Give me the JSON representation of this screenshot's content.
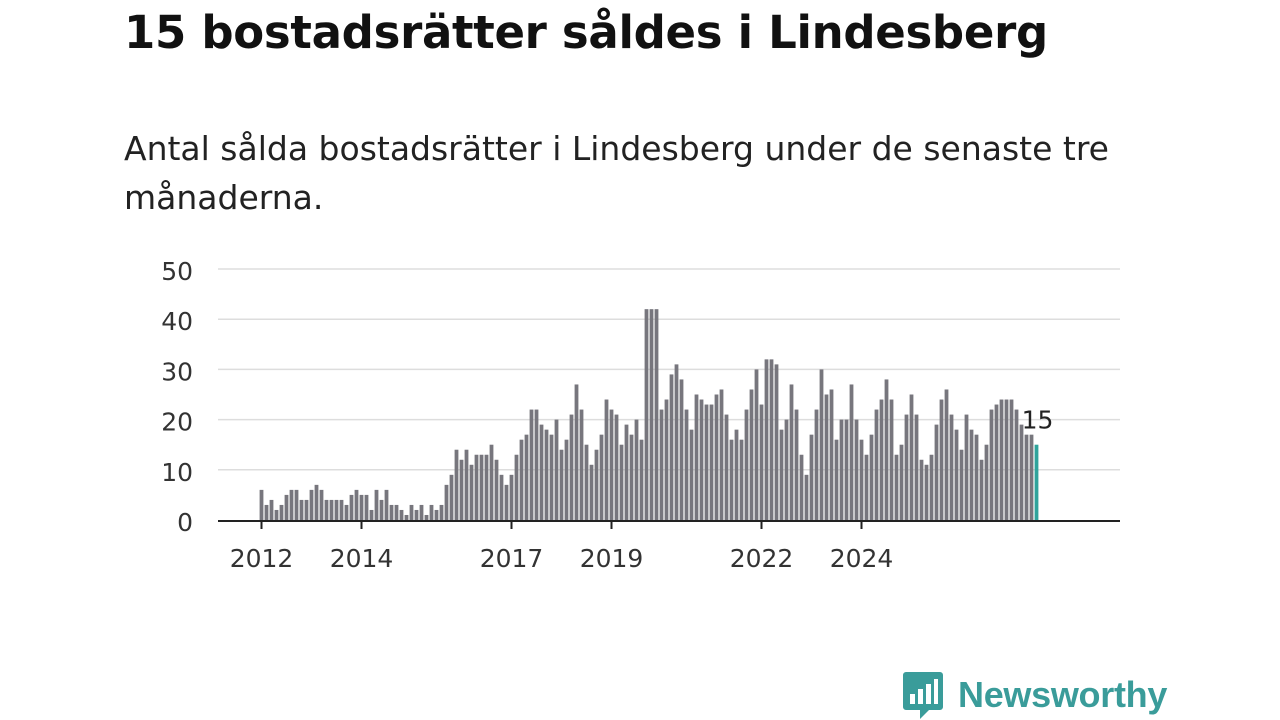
{
  "title": "15 bostadsrätter såldes i Lindesberg",
  "subtitle": "Antal sålda bostadsrätter i Lindesberg under de senaste tre månaderna.",
  "brand": {
    "name": "Newsworthy",
    "color": "#3a9c9a",
    "icon": "newsworthy-logo-icon"
  },
  "chart_data": {
    "type": "bar",
    "y_ticks": [
      0,
      10,
      20,
      30,
      40,
      50
    ],
    "ylim": [
      0,
      50
    ],
    "x_ticks": [
      {
        "label": "2012",
        "index": 0
      },
      {
        "label": "2014",
        "index": 20
      },
      {
        "label": "2017",
        "index": 50
      },
      {
        "label": "2019",
        "index": 70
      },
      {
        "label": "2022",
        "index": 100
      },
      {
        "label": "2024",
        "index": 120
      }
    ],
    "values": [
      6,
      3,
      4,
      2,
      3,
      5,
      6,
      6,
      4,
      4,
      6,
      7,
      6,
      4,
      4,
      4,
      4,
      3,
      5,
      6,
      5,
      5,
      2,
      6,
      4,
      6,
      3,
      3,
      2,
      1,
      3,
      2,
      3,
      1,
      3,
      2,
      3,
      7,
      9,
      14,
      12,
      14,
      11,
      13,
      13,
      13,
      15,
      12,
      9,
      7,
      9,
      13,
      16,
      17,
      22,
      22,
      19,
      18,
      17,
      20,
      14,
      16,
      21,
      27,
      22,
      15,
      11,
      14,
      17,
      24,
      22,
      21,
      15,
      19,
      17,
      20,
      16,
      42,
      42,
      42,
      22,
      24,
      29,
      31,
      28,
      22,
      18,
      25,
      24,
      23,
      23,
      25,
      26,
      21,
      16,
      18,
      16,
      22,
      26,
      30,
      23,
      32,
      32,
      31,
      18,
      20,
      27,
      22,
      13,
      9,
      17,
      22,
      30,
      25,
      26,
      16,
      20,
      20,
      27,
      20,
      16,
      13,
      17,
      22,
      24,
      28,
      24,
      13,
      15,
      21,
      25,
      21,
      12,
      11,
      13,
      19,
      24,
      26,
      21,
      18,
      14,
      21,
      18,
      17,
      12,
      15,
      22,
      23,
      24,
      24,
      24,
      22,
      19,
      17,
      17,
      15
    ],
    "highlight_label": "15",
    "bar_color": "#77767d",
    "highlight_color": "#2fa39b",
    "grid": true,
    "grid_color": "#dddddd"
  }
}
